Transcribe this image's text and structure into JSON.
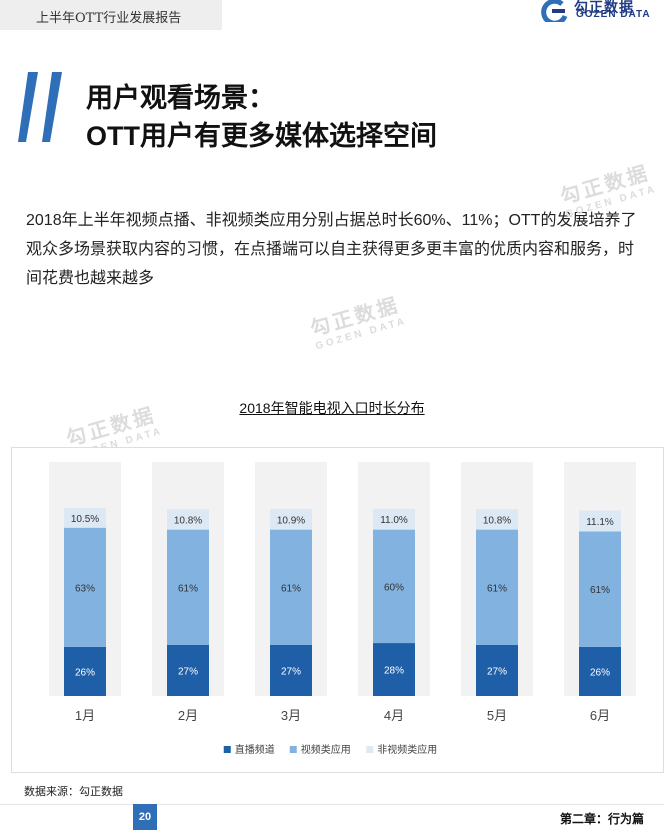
{
  "header": {
    "title": "上半年OTT行业发展报告"
  },
  "logo": {
    "name": "勾正数据",
    "sub": "GOZEN DATA"
  },
  "page_title": {
    "line1": "用户观看场景：",
    "line2": "OTT用户有更多媒体选择空间"
  },
  "intro": "2018年上半年视频点播、非视频类应用分别占据总时长60%、11%；OTT的发展培养了观众多场景获取内容的习惯，在点播端可以自主获得更多更丰富的优质内容和服务，时间花费也越来越多",
  "watermark": {
    "zh": "勾正数据",
    "en": "GOZEN DATA"
  },
  "chart_data": {
    "type": "bar",
    "stacked": true,
    "title": "2018年智能电视入口时长分布",
    "categories": [
      "1月",
      "2月",
      "3月",
      "4月",
      "5月",
      "6月"
    ],
    "series": [
      {
        "name": "直播频道",
        "color": "#1f5fa8",
        "values": [
          26,
          27,
          27,
          28,
          27,
          26
        ],
        "labels": [
          "26%",
          "27%",
          "27%",
          "28%",
          "27%",
          "26%"
        ]
      },
      {
        "name": "视频类应用",
        "color": "#82b2e0",
        "values": [
          63,
          61,
          61,
          60,
          61,
          61
        ],
        "labels": [
          "63%",
          "61%",
          "61%",
          "60%",
          "61%",
          "61%"
        ]
      },
      {
        "name": "非视频类应用",
        "color": "#dde8f5",
        "values": [
          10.5,
          10.8,
          10.9,
          11.0,
          10.8,
          11.1
        ],
        "labels": [
          "10.5%",
          "10.8%",
          "10.9%",
          "11.0%",
          "10.8%",
          "11.1%"
        ]
      }
    ],
    "ylim": [
      0,
      100
    ],
    "grid": false,
    "legend": "bottom"
  },
  "source": "数据来源：勾正数据",
  "footer": {
    "page": "20",
    "chapter": "第二章：行为篇"
  },
  "colors": {
    "accent": "#2e6fb8",
    "brand": "#1f3c84"
  },
  "icons": {
    "logo": "gozen-logo-icon",
    "title_mark": "double-slash-icon"
  }
}
